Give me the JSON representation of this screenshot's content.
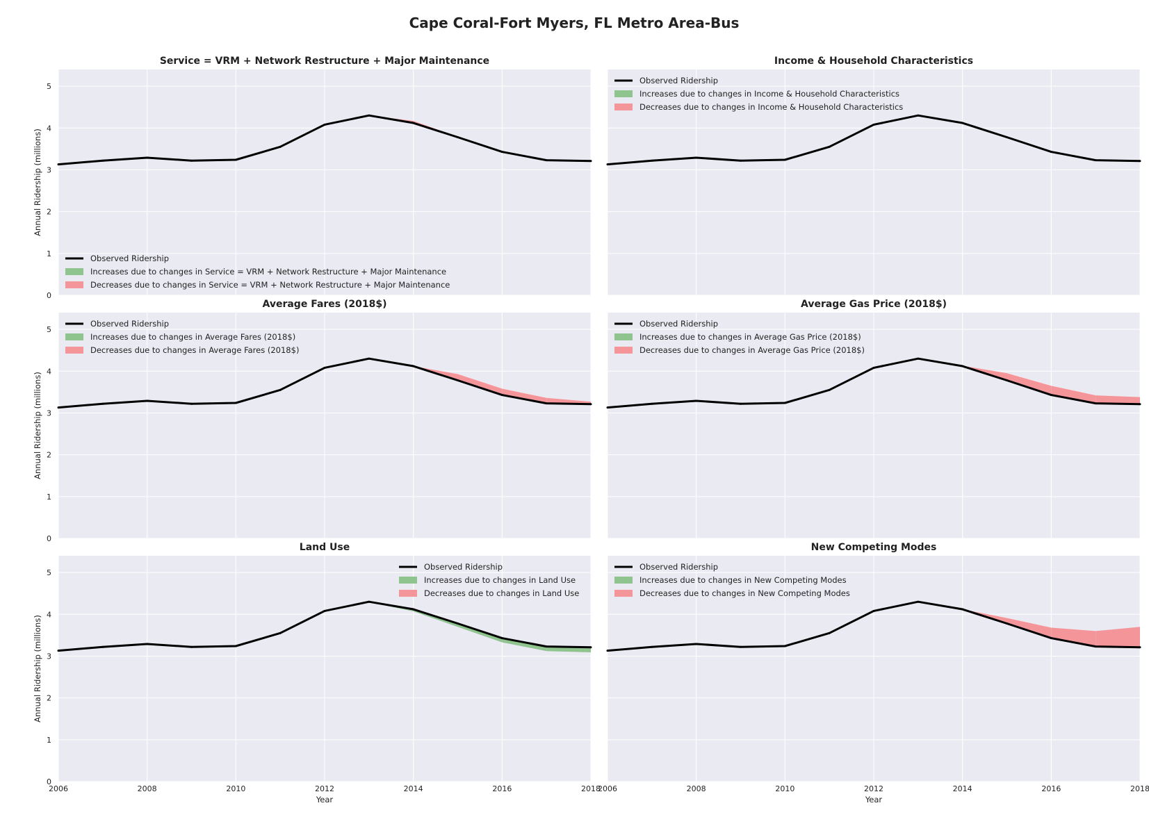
{
  "figure_title": "Cape Coral-Fort Myers, FL Metro Area-Bus",
  "colors": {
    "background": "#eaeaf2",
    "grid": "#ffffff",
    "observed": "#000000",
    "increase": "#8fc48f",
    "decrease": "#f4959a"
  },
  "chart_data": [
    {
      "type": "area",
      "title": "Service = VRM + Network Restructure + Major Maintenance",
      "xlabel": "",
      "ylabel": "Annual Ridership (millions)",
      "xlim": [
        2006,
        2018
      ],
      "ylim": [
        0,
        5.4
      ],
      "xticks": [],
      "yticks": [
        0,
        1,
        2,
        3,
        4,
        5
      ],
      "grid": true,
      "legend_position": "lower-left",
      "legend": [
        "Observed Ridership",
        "Increases due to changes in Service = VRM + Network Restructure + Major Maintenance",
        "Decreases due to changes in Service = VRM + Network Restructure + Major Maintenance"
      ],
      "x": [
        2006,
        2007,
        2008,
        2009,
        2010,
        2011,
        2012,
        2013,
        2014,
        2015,
        2016,
        2017,
        2018
      ],
      "observed": [
        3.13,
        3.22,
        3.29,
        3.22,
        3.24,
        3.55,
        4.08,
        4.3,
        4.12,
        3.78,
        3.43,
        3.23,
        3.21
      ],
      "counterfactual": [
        3.13,
        3.22,
        3.29,
        3.22,
        3.24,
        3.55,
        4.08,
        4.3,
        4.17,
        3.79,
        3.43,
        3.23,
        3.21
      ]
    },
    {
      "type": "area",
      "title": "Income & Household Characteristics",
      "xlabel": "",
      "ylabel": "",
      "xlim": [
        2006,
        2018
      ],
      "ylim": [
        0,
        5.4
      ],
      "xticks": [],
      "yticks": [],
      "grid": true,
      "legend_position": "upper-left",
      "legend": [
        "Observed Ridership",
        "Increases due to changes in Income & Household Characteristics",
        "Decreases due to changes in Income & Household Characteristics"
      ],
      "x": [
        2006,
        2007,
        2008,
        2009,
        2010,
        2011,
        2012,
        2013,
        2014,
        2015,
        2016,
        2017,
        2018
      ],
      "observed": [
        3.13,
        3.22,
        3.29,
        3.22,
        3.24,
        3.55,
        4.08,
        4.3,
        4.12,
        3.78,
        3.43,
        3.23,
        3.21
      ],
      "counterfactual": [
        3.13,
        3.22,
        3.29,
        3.22,
        3.24,
        3.55,
        4.08,
        4.3,
        4.12,
        3.78,
        3.43,
        3.23,
        3.21
      ]
    },
    {
      "type": "area",
      "title": "Average Fares (2018$)",
      "xlabel": "",
      "ylabel": "Annual Ridership (millions)",
      "xlim": [
        2006,
        2018
      ],
      "ylim": [
        0,
        5.4
      ],
      "xticks": [],
      "yticks": [
        0,
        1,
        2,
        3,
        4,
        5
      ],
      "grid": true,
      "legend_position": "upper-left",
      "legend": [
        "Observed Ridership",
        "Increases due to changes in Average Fares (2018$)",
        "Decreases due to changes in Average Fares (2018$)"
      ],
      "x": [
        2006,
        2007,
        2008,
        2009,
        2010,
        2011,
        2012,
        2013,
        2014,
        2015,
        2016,
        2017,
        2018
      ],
      "observed": [
        3.13,
        3.22,
        3.29,
        3.22,
        3.24,
        3.55,
        4.08,
        4.3,
        4.12,
        3.78,
        3.43,
        3.23,
        3.21
      ],
      "counterfactual": [
        3.13,
        3.22,
        3.29,
        3.22,
        3.24,
        3.55,
        4.08,
        4.3,
        4.12,
        3.93,
        3.58,
        3.36,
        3.27
      ]
    },
    {
      "type": "area",
      "title": "Average Gas Price (2018$)",
      "xlabel": "",
      "ylabel": "",
      "xlim": [
        2006,
        2018
      ],
      "ylim": [
        0,
        5.4
      ],
      "xticks": [],
      "yticks": [],
      "grid": true,
      "legend_position": "upper-left",
      "legend": [
        "Observed Ridership",
        "Increases due to changes in Average Gas Price (2018$)",
        "Decreases due to changes in Average Gas Price (2018$)"
      ],
      "x": [
        2006,
        2007,
        2008,
        2009,
        2010,
        2011,
        2012,
        2013,
        2014,
        2015,
        2016,
        2017,
        2018
      ],
      "observed": [
        3.13,
        3.22,
        3.29,
        3.22,
        3.24,
        3.55,
        4.08,
        4.3,
        4.12,
        3.78,
        3.43,
        3.23,
        3.21
      ],
      "counterfactual": [
        3.13,
        3.22,
        3.29,
        3.22,
        3.24,
        3.55,
        4.08,
        4.3,
        4.13,
        3.95,
        3.65,
        3.42,
        3.38
      ]
    },
    {
      "type": "area",
      "title": "Land Use",
      "xlabel": "Year",
      "ylabel": "Annual Ridership (millions)",
      "xlim": [
        2006,
        2018
      ],
      "ylim": [
        0,
        5.4
      ],
      "xticks": [
        2006,
        2008,
        2010,
        2012,
        2014,
        2016,
        2018
      ],
      "yticks": [
        0,
        1,
        2,
        3,
        4,
        5
      ],
      "grid": true,
      "legend_position": "upper-right",
      "legend": [
        "Observed Ridership",
        "Increases due to changes in Land Use",
        "Decreases due to changes in Land Use"
      ],
      "x": [
        2006,
        2007,
        2008,
        2009,
        2010,
        2011,
        2012,
        2013,
        2014,
        2015,
        2016,
        2017,
        2018
      ],
      "observed": [
        3.13,
        3.22,
        3.29,
        3.22,
        3.24,
        3.55,
        4.08,
        4.3,
        4.12,
        3.78,
        3.43,
        3.23,
        3.21
      ],
      "counterfactual": [
        3.13,
        3.22,
        3.29,
        3.22,
        3.24,
        3.55,
        4.08,
        4.29,
        4.07,
        3.7,
        3.33,
        3.12,
        3.09
      ]
    },
    {
      "type": "area",
      "title": "New Competing Modes",
      "xlabel": "Year",
      "ylabel": "",
      "xlim": [
        2006,
        2018
      ],
      "ylim": [
        0,
        5.4
      ],
      "xticks": [
        2006,
        2008,
        2010,
        2012,
        2014,
        2016,
        2018
      ],
      "yticks": [],
      "grid": true,
      "legend_position": "upper-left",
      "legend": [
        "Observed Ridership",
        "Increases due to changes in New Competing Modes",
        "Decreases due to changes in New Competing Modes"
      ],
      "x": [
        2006,
        2007,
        2008,
        2009,
        2010,
        2011,
        2012,
        2013,
        2014,
        2015,
        2016,
        2017,
        2018
      ],
      "observed": [
        3.13,
        3.22,
        3.29,
        3.22,
        3.24,
        3.55,
        4.08,
        4.3,
        4.12,
        3.78,
        3.43,
        3.23,
        3.21
      ],
      "counterfactual": [
        3.13,
        3.22,
        3.29,
        3.22,
        3.24,
        3.55,
        4.08,
        4.3,
        4.12,
        3.91,
        3.68,
        3.6,
        3.7
      ]
    }
  ]
}
